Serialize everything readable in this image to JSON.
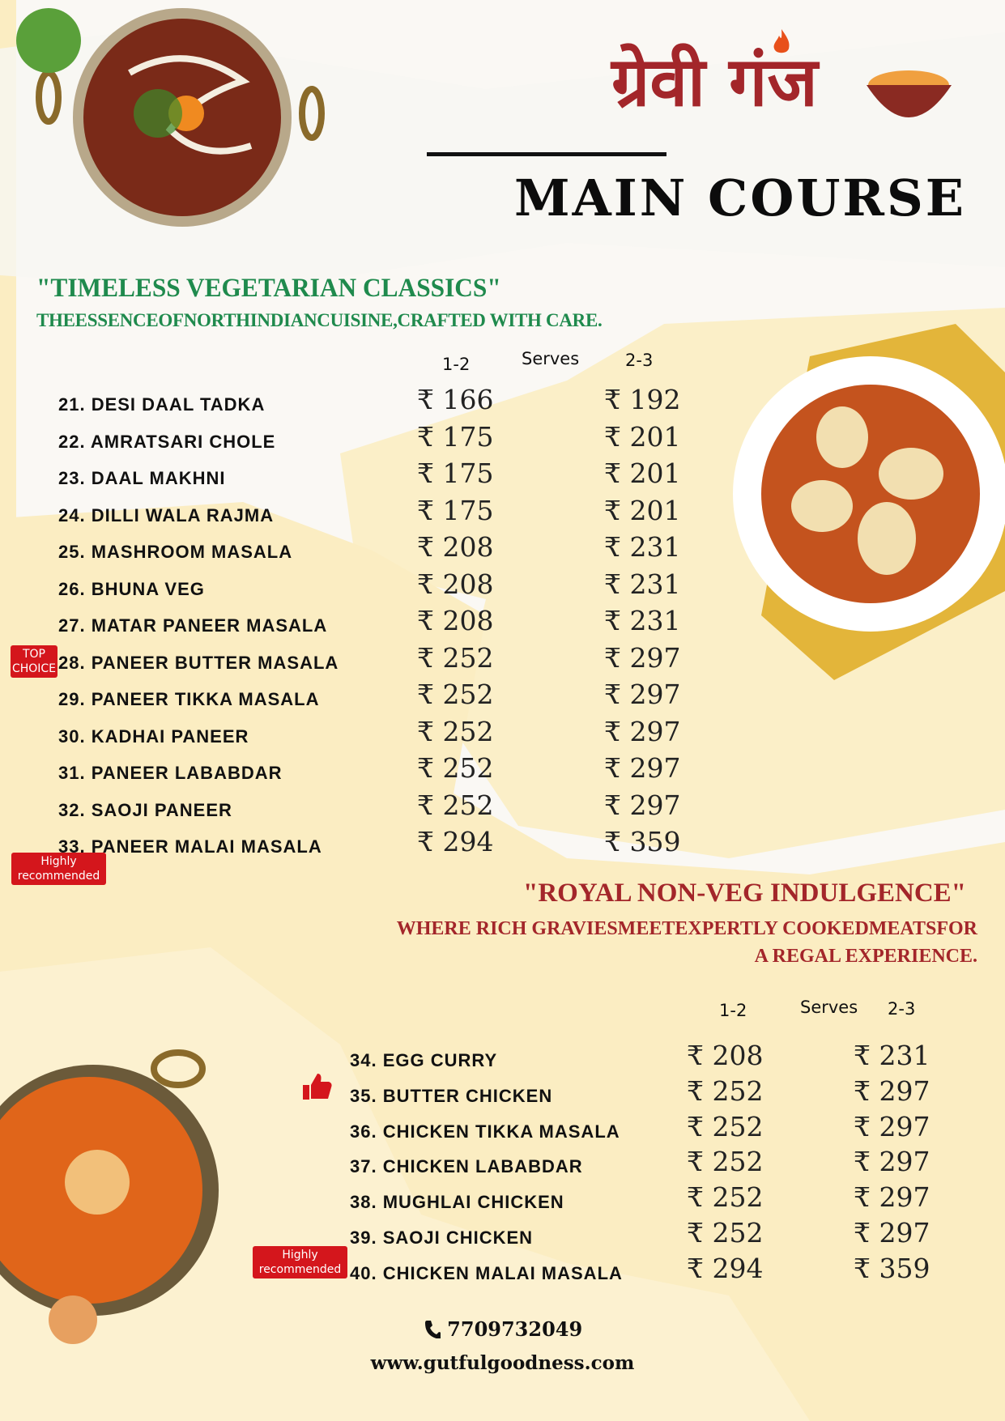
{
  "brand": {
    "logo": "ग्रेवी गंज"
  },
  "page_title": "MAIN COURSE",
  "veg": {
    "heading": "\"TIMELESS VEGETARIAN CLASSICS\"",
    "subheading": "THEESSENCEOFNORTHINDIANCUISINE,CRAFTED WITH CARE.",
    "col_small": "1-2",
    "col_serves": "Serves",
    "col_large": "2-3",
    "items": [
      {
        "name": "21. DESI DAAL TADKA",
        "p1": "₹ 166",
        "p2": "₹ 192"
      },
      {
        "name": "22. AMRATSARI CHOLE",
        "p1": "₹ 175",
        "p2": "₹ 201"
      },
      {
        "name": "23. DAAL MAKHNI",
        "p1": "₹ 175",
        "p2": "₹ 201"
      },
      {
        "name": "24. DILLI WALA RAJMA",
        "p1": "₹ 175",
        "p2": "₹ 201"
      },
      {
        "name": "25. MASHROOM MASALA",
        "p1": "₹ 208",
        "p2": "₹ 231"
      },
      {
        "name": "26. BHUNA VEG",
        "p1": "₹ 208",
        "p2": "₹ 231"
      },
      {
        "name": "27. MATAR PANEER MASALA",
        "p1": "₹ 208",
        "p2": "₹ 231"
      },
      {
        "name": "28. PANEER BUTTER MASALA",
        "p1": "₹ 252",
        "p2": "₹ 297"
      },
      {
        "name": "29. PANEER TIKKA MASALA",
        "p1": "₹ 252",
        "p2": "₹ 297"
      },
      {
        "name": "30. KADHAI PANEER",
        "p1": "₹ 252",
        "p2": "₹ 297"
      },
      {
        "name": "31. PANEER LABABDAR",
        "p1": "₹ 252",
        "p2": "₹ 297"
      },
      {
        "name": "32. SAOJI PANEER",
        "p1": "₹ 252",
        "p2": "₹ 297"
      },
      {
        "name": "33. PANEER MALAI MASALA",
        "p1": "₹ 294",
        "p2": "₹ 359"
      }
    ],
    "badge_top_line1": "TOP",
    "badge_top_line2": "CHOICE",
    "badge_rec_line1": "Highly",
    "badge_rec_line2": "recommended"
  },
  "nonveg": {
    "heading": "\"ROYAL NON-VEG INDULGENCE\"",
    "subheading_line1": "WHERE RICH GRAVIESMEETEXPERTLY COOKEDMEATSFOR",
    "subheading_line2": "A REGAL EXPERIENCE.",
    "col_small": "1-2",
    "col_serves": "Serves",
    "col_large": "2-3",
    "items": [
      {
        "name": "34. EGG CURRY",
        "p1": "₹ 208",
        "p2": "₹ 231"
      },
      {
        "name": "35. BUTTER CHICKEN",
        "p1": "₹ 252",
        "p2": "₹ 297"
      },
      {
        "name": "36. CHICKEN TIKKA MASALA",
        "p1": "₹ 252",
        "p2": "₹ 297"
      },
      {
        "name": "37. CHICKEN LABABDAR",
        "p1": "₹ 252",
        "p2": "₹ 297"
      },
      {
        "name": "38. MUGHLAI CHICKEN",
        "p1": "₹ 252",
        "p2": "₹ 297"
      },
      {
        "name": "39. SAOJI CHICKEN",
        "p1": "₹ 252",
        "p2": "₹ 297"
      },
      {
        "name": "40. CHICKEN MALAI MASALA",
        "p1": "₹ 294",
        "p2": "₹ 359"
      }
    ],
    "badge_rec_line1": "Highly",
    "badge_rec_line2": "recommended"
  },
  "contact": {
    "phone": "7709732049",
    "website": "www.gutfulgoodness.com"
  },
  "colors": {
    "green": "#1f8a4d",
    "red": "#a3262a",
    "badge": "#d4161c",
    "paper_yellow": "#fbedc2"
  }
}
